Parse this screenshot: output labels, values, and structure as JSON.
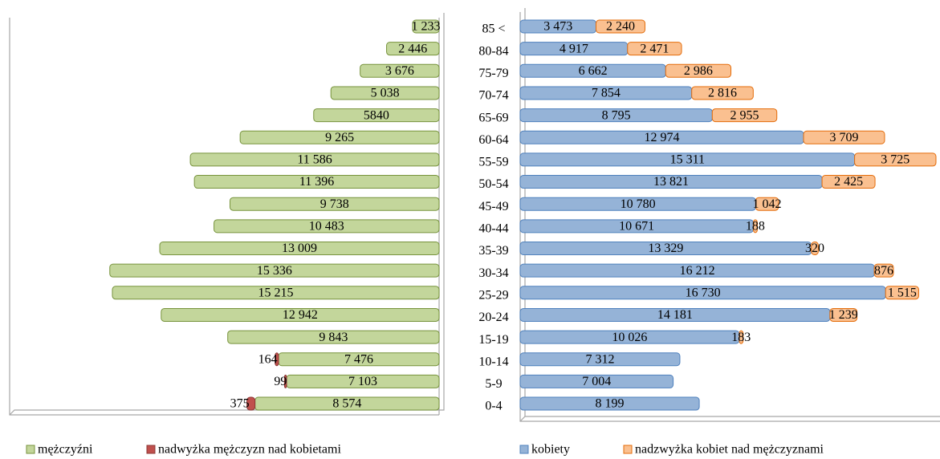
{
  "chart_data": [
    {
      "type": "bar",
      "stacked": true,
      "x_reversed": true,
      "xlim": [
        0,
        20000
      ],
      "series": [
        {
          "name": "mężczyźni",
          "color": "#c3d69b",
          "edge": "#77933c",
          "values": [
            1233,
            2446,
            3676,
            5038,
            5840,
            9265,
            11586,
            11396,
            9738,
            10483,
            13009,
            15336,
            15215,
            12942,
            9843,
            7476,
            7103,
            8574
          ],
          "value_labels": [
            "1 233",
            "2 446",
            "3 676",
            "5 038",
            "5840",
            "9 265",
            "11 586",
            "11 396",
            "9 738",
            "10 483",
            "13 009",
            "15 336",
            "15 215",
            "12 942",
            "9 843",
            "7 476",
            "7 103",
            "8 574"
          ]
        },
        {
          "name": "nadwyżka mężczyzn nad kobietami",
          "color": "#c0504d",
          "edge": "#8c3836",
          "values": [
            null,
            null,
            null,
            null,
            null,
            null,
            null,
            null,
            null,
            null,
            null,
            null,
            null,
            null,
            null,
            164,
            99,
            375
          ]
        }
      ]
    },
    {
      "type": "bar",
      "stacked": true,
      "x_reversed": false,
      "xlim": [
        0,
        19000
      ],
      "categories": [
        "85 <",
        "80-84",
        "75-79",
        "70-74",
        "65-69",
        "60-64",
        "55-59",
        "50-54",
        "45-49",
        "40-44",
        "35-39",
        "30-34",
        "25-29",
        "20-24",
        "15-19",
        "10-14",
        "5-9",
        "0-4"
      ],
      "series": [
        {
          "name": "kobiety",
          "color": "#95b3d7",
          "edge": "#4f81bd",
          "values": [
            3473,
            4917,
            6662,
            7854,
            8795,
            12974,
            15311,
            13821,
            10780,
            10671,
            13329,
            16212,
            16730,
            14181,
            10026,
            7312,
            7004,
            8199
          ],
          "value_labels": [
            "3 473",
            "4 917",
            "6 662",
            "7 854",
            "8 795",
            "12 974",
            "15 311",
            "13 821",
            "10 780",
            "10 671",
            "13 329",
            "16 212",
            "16 730",
            "14 181",
            "10 026",
            "7 312",
            "7 004",
            "8 199"
          ]
        },
        {
          "name": "nadzwyżka kobiet nad mężczyznami",
          "color": "#fac090",
          "edge": "#e46c0a",
          "values": [
            2240,
            2471,
            2986,
            2816,
            2955,
            3709,
            3725,
            2425,
            1042,
            188,
            320,
            876,
            1515,
            1239,
            183,
            null,
            null,
            null
          ],
          "value_labels": [
            "2 240",
            "2 471",
            "2 986",
            "2 816",
            "2 955",
            "3 709",
            "3 725",
            "2 425",
            "1 042",
            null,
            null,
            null,
            "1 515",
            "1 239",
            null,
            null,
            null,
            null
          ]
        }
      ]
    }
  ]
}
